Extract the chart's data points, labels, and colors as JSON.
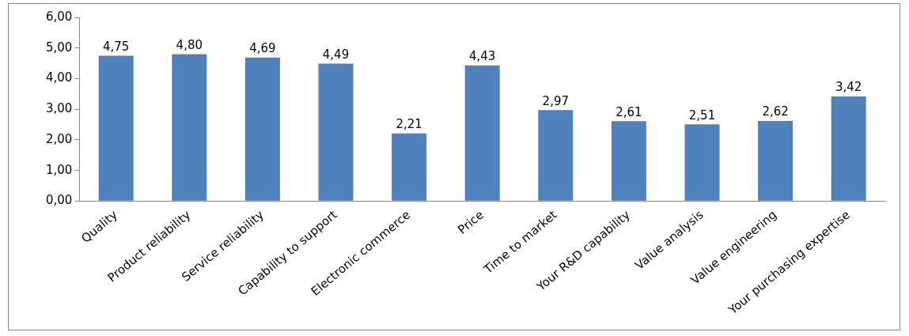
{
  "chart_data": {
    "type": "bar",
    "categories": [
      "Quality",
      "Product reliability",
      "Service reliability",
      "Capability to support",
      "Electronic commerce",
      "Price",
      "Time to market",
      "Your R&D capability",
      "Value analysis",
      "Value engineering",
      "Your purchasing expertise"
    ],
    "values": [
      4.75,
      4.8,
      4.69,
      4.49,
      2.21,
      4.43,
      2.97,
      2.61,
      2.51,
      2.62,
      3.42
    ],
    "value_labels": [
      "4,75",
      "4,80",
      "4,69",
      "4,49",
      "2,21",
      "4,43",
      "2,97",
      "2,61",
      "2,51",
      "2,62",
      "3,42"
    ],
    "color": "#4f81bd",
    "ylim": [
      0,
      6
    ],
    "yticks": [
      {
        "value": 0,
        "label": "0,00"
      },
      {
        "value": 1,
        "label": "1,00"
      },
      {
        "value": 2,
        "label": "2,00"
      },
      {
        "value": 3,
        "label": "3,00"
      },
      {
        "value": 4,
        "label": "4,00"
      },
      {
        "value": 5,
        "label": "5,00"
      },
      {
        "value": 6,
        "label": "6,00"
      }
    ],
    "grid": false,
    "legend": false
  }
}
